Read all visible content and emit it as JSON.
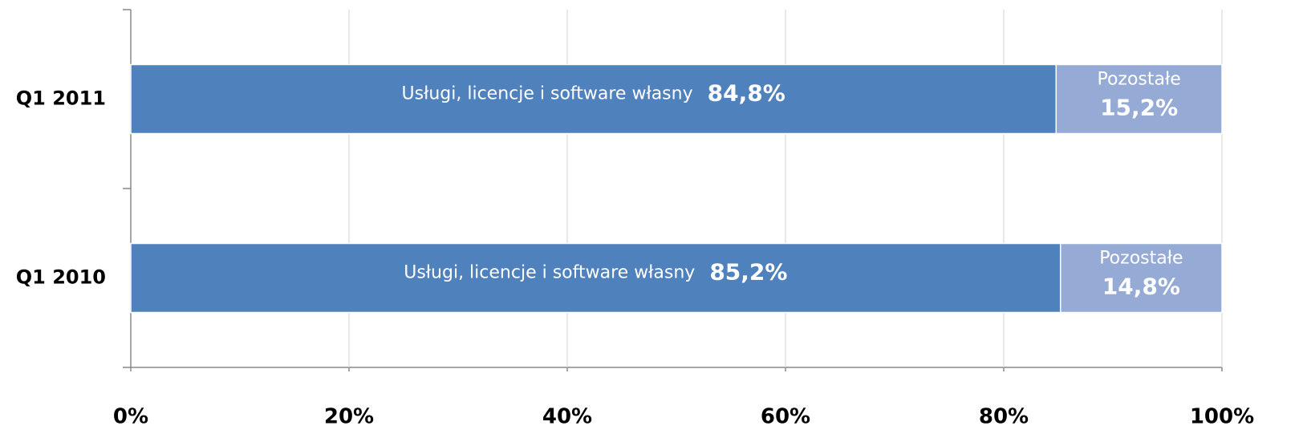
{
  "chart_data": {
    "type": "stacked_barh",
    "categories": [
      "Q1 2011",
      "Q1 2010"
    ],
    "series": [
      {
        "name": "Usługi, licencje i software własny",
        "color": "#4f81bd",
        "values": [
          84.8,
          85.2
        ],
        "value_labels": [
          "84,8%",
          "85,2%"
        ]
      },
      {
        "name": "Pozostałe",
        "color": "#95aad4",
        "values": [
          15.2,
          14.8
        ],
        "value_labels": [
          "15,2%",
          "14,8%"
        ]
      }
    ],
    "xlim": [
      0,
      100
    ],
    "xticks": [
      {
        "value": 0,
        "label": "0%"
      },
      {
        "value": 20,
        "label": "20%"
      },
      {
        "value": 40,
        "label": "40%"
      },
      {
        "value": 60,
        "label": "60%"
      },
      {
        "value": 80,
        "label": "80%"
      },
      {
        "value": 100,
        "label": "100%"
      }
    ],
    "grid": true
  }
}
